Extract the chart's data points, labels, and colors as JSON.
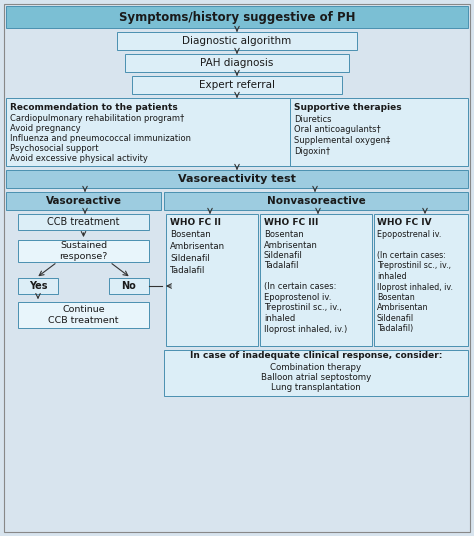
{
  "bg_color": "#d8e4ee",
  "header_fill": "#7bbfd4",
  "section_header_fill": "#9dcce0",
  "box_fill": "#dceef7",
  "box_fill_light": "#e8f5fb",
  "edge_color": "#4a90b0",
  "text_color": "#1a1a1a",
  "arrow_color": "#333333",
  "top_title": "Symptoms/history suggestive of PH",
  "diag_alg": "Diagnostic algorithm",
  "pah_diag": "PAH diagnosis",
  "expert_ref": "Expert referral",
  "rec_title": "Recommendation to the patients",
  "rec_lines": [
    "Cardiopulmonary rehabilitation program†",
    "Avoid pregnancy",
    "Influenza and pneumococcal immunization",
    "Psychosocial support",
    "Avoid excessive physical activity"
  ],
  "sup_title": "Supportive therapies",
  "sup_lines": [
    "Diuretics",
    "Oral anticoagulants†",
    "Supplemental oxygen‡",
    "Digoxin†"
  ],
  "vasoreact_test": "Vasoreactivity test",
  "vasoreactive": "Vasoreactive",
  "nonvasoreactive": "Nonvasoreactive",
  "ccb": "CCB treatment",
  "sustained": "Sustained\nresponse?",
  "yes": "Yes",
  "no": "No",
  "continue_ccb": "Continue\nCCB treatment",
  "fc2_title": "WHO FC II",
  "fc2_lines": [
    "Bosentan",
    "Ambrisentan",
    "Sildenafil",
    "Tadalafil"
  ],
  "fc3_title": "WHO FC III",
  "fc3_lines": [
    "Bosentan",
    "Ambrisentan",
    "Sildenafil",
    "Tadalafil",
    "",
    "(In certain cases:",
    "Epoprostenol iv.",
    "Treprostinil sc., iv.,",
    "inhaled",
    "Iloprost inhaled, iv.)"
  ],
  "fc4_title": "WHO FC IV",
  "fc4_lines": [
    "Epopostrenal iv.",
    "",
    "(In certain cases:",
    "Treprostinil sc., iv.,",
    "inhaled",
    "Iloprost inhaled, iv.",
    "Bosentan",
    "Ambrisentan",
    "Sildenafil",
    "Tadalafil)"
  ],
  "inadequate_title": "In case of inadequate clinical response, consider:",
  "inadequate_lines": [
    "Combination therapy",
    "Balloon atrial septostomy",
    "Lung transplantation"
  ]
}
